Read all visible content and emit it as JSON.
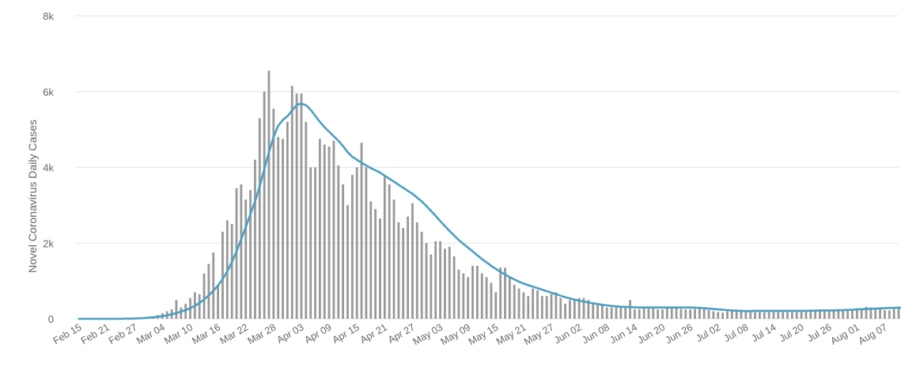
{
  "chart_data": {
    "type": "bar",
    "ylabel": "Novel Coronavirus Daily Cases",
    "xlabel": "",
    "ylim": [
      0,
      8000
    ],
    "y_ticks": [
      0,
      2000,
      4000,
      6000,
      8000
    ],
    "y_tick_labels": [
      "0",
      "2k",
      "4k",
      "6k",
      "8k"
    ],
    "grid": true,
    "x_start": "Feb 15",
    "x_end": "Aug 07",
    "x_tick_labels": [
      "Feb 15",
      "Feb 21",
      "Feb 27",
      "Mar 04",
      "Mar 10",
      "Mar 16",
      "Mar 22",
      "Mar 28",
      "Apr 03",
      "Apr 09",
      "Apr 15",
      "Apr 21",
      "Apr 27",
      "May 03",
      "May 09",
      "May 15",
      "May 21",
      "May 27",
      "Jun 02",
      "Jun 08",
      "Jun 14",
      "Jun 20",
      "Jun 26",
      "Jul 02",
      "Jul 08",
      "Jul 14",
      "Jul 20",
      "Jul 26",
      "Aug 01",
      "Aug 07"
    ],
    "colors": {
      "bars": "#999999",
      "average_line": "#4a9fc1",
      "grid": "#e6e6e6",
      "text": "#666666"
    },
    "series": [
      {
        "kind": "bars",
        "values": [
          0,
          0,
          0,
          0,
          0,
          0,
          0,
          0,
          0,
          0,
          0,
          0,
          0,
          5,
          10,
          30,
          60,
          100,
          150,
          200,
          250,
          500,
          300,
          400,
          550,
          700,
          650,
          1200,
          1450,
          1750,
          900,
          2300,
          2600,
          2500,
          3450,
          3550,
          3150,
          3400,
          4200,
          5300,
          6000,
          6550,
          5550,
          4800,
          4750,
          5200,
          6150,
          5950,
          5950,
          5200,
          4000,
          4000,
          4750,
          4600,
          4550,
          4700,
          4050,
          3550,
          3000,
          3800,
          4000,
          4650,
          4000,
          3100,
          2900,
          2650,
          3750,
          3550,
          3150,
          2550,
          2400,
          2700,
          3050,
          2550,
          2300,
          2000,
          1700,
          2050,
          2050,
          1850,
          1900,
          1650,
          1300,
          1200,
          1100,
          1400,
          1400,
          1200,
          1100,
          950,
          700,
          1350,
          1350,
          1100,
          900,
          800,
          700,
          600,
          800,
          750,
          600,
          600,
          650,
          700,
          550,
          400,
          500,
          500,
          550,
          550,
          500,
          400,
          400,
          350,
          300,
          300,
          300,
          300,
          320,
          500,
          250,
          250,
          280,
          300,
          300,
          250,
          250,
          280,
          280,
          280,
          260,
          250,
          250,
          260,
          300,
          250,
          230,
          200,
          180,
          160,
          200,
          200,
          220,
          200,
          200,
          180,
          180,
          180,
          180,
          200,
          200,
          200,
          200,
          180,
          180,
          200,
          200,
          200,
          220,
          200,
          200,
          200,
          200,
          220,
          230,
          250,
          250,
          260,
          280,
          280,
          320,
          300,
          250,
          250,
          230,
          220,
          260,
          300
        ]
      },
      {
        "kind": "line",
        "name": "",
        "values": [
          0,
          0,
          0,
          0,
          0,
          0,
          0,
          0,
          0,
          0,
          5,
          5,
          10,
          15,
          20,
          30,
          40,
          55,
          70,
          90,
          120,
          150,
          190,
          230,
          280,
          340,
          420,
          510,
          620,
          740,
          880,
          1050,
          1250,
          1500,
          1780,
          2100,
          2420,
          2760,
          3100,
          3500,
          3950,
          4400,
          4800,
          5100,
          5250,
          5350,
          5500,
          5650,
          5680,
          5640,
          5520,
          5360,
          5200,
          5060,
          4940,
          4820,
          4700,
          4560,
          4400,
          4280,
          4200,
          4120,
          4050,
          3980,
          3920,
          3860,
          3780,
          3700,
          3620,
          3540,
          3460,
          3380,
          3300,
          3200,
          3100,
          2980,
          2850,
          2720,
          2580,
          2450,
          2320,
          2200,
          2080,
          1980,
          1880,
          1780,
          1680,
          1580,
          1490,
          1400,
          1320,
          1240,
          1170,
          1100,
          1040,
          980,
          930,
          890,
          850,
          810,
          770,
          730,
          690,
          650,
          610,
          570,
          540,
          510,
          480,
          455,
          430,
          410,
          390,
          370,
          355,
          340,
          330,
          320,
          315,
          310,
          305,
          300,
          300,
          300,
          300,
          300,
          300,
          300,
          300,
          300,
          300,
          300,
          300,
          295,
          290,
          280,
          270,
          260,
          250,
          240,
          230,
          220,
          215,
          210,
          205,
          205,
          210,
          210,
          210,
          210,
          210,
          210,
          210,
          210,
          210,
          210,
          210,
          210,
          215,
          215,
          220,
          220,
          220,
          220,
          225,
          230,
          235,
          240,
          250,
          255,
          260,
          265,
          270,
          275,
          280,
          285,
          290,
          295,
          300,
          305
        ]
      }
    ]
  }
}
